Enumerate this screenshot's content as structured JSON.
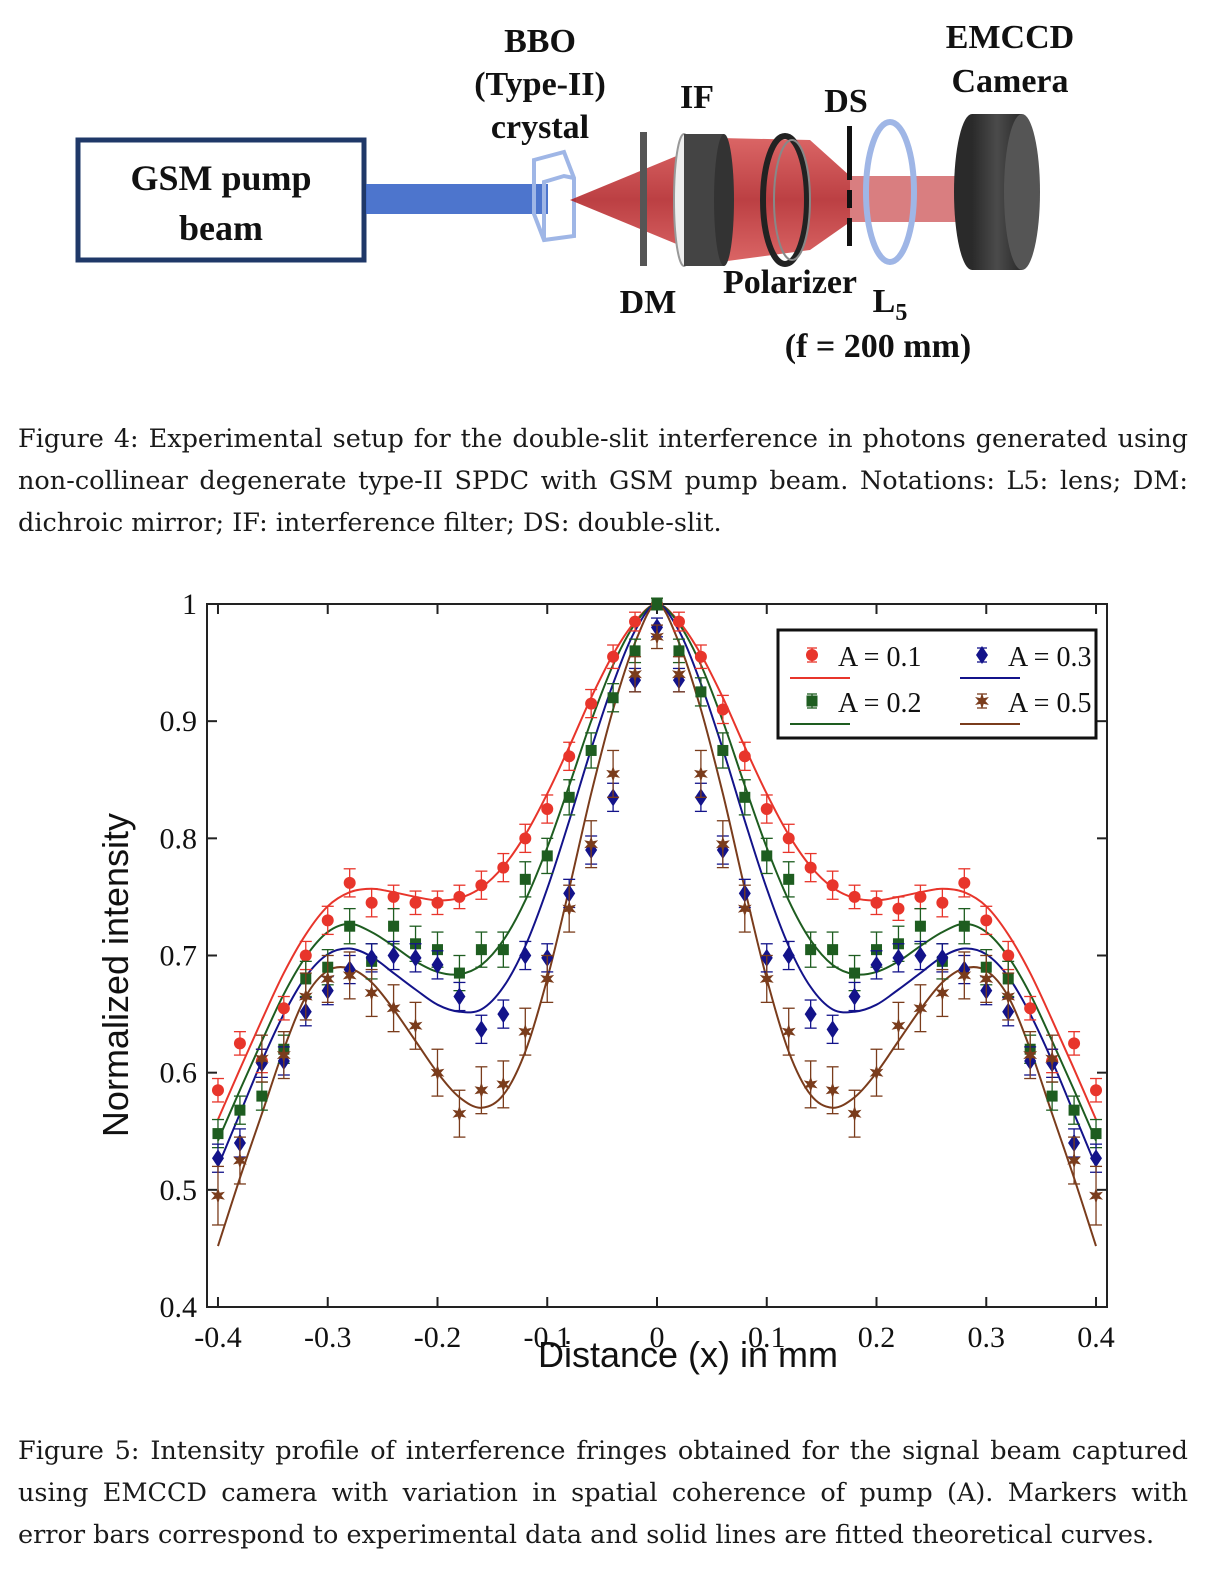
{
  "figure4": {
    "labels": {
      "pump_line1": "GSM pump",
      "pump_line2": "beam",
      "bbo_line1": "BBO",
      "bbo_line2": "(Type-II)",
      "bbo_line3": "crystal",
      "if": "IF",
      "ds": "DS",
      "emccd_line1": "EMCCD",
      "emccd_line2": "Camera",
      "dm": "DM",
      "polarizer": "Polarizer",
      "lens": "L",
      "lens_sub": "5",
      "focal": "(f = 200 mm)"
    },
    "colors": {
      "beam_blue": "#3a66c8",
      "spdc_red": "#c0282c",
      "frame": "#1f3868",
      "lens_blue": "#9fb6e6",
      "camera": "#3c3c3c"
    },
    "caption": "Figure 4: Experimental setup for the double-slit interference in photons generated using non-collinear degenerate type-II SPDC with GSM pump beam. Notations: L5: lens; DM: dichroic mirror; IF: interference filter; DS: double-slit."
  },
  "figure5": {
    "caption": "Figure 5: Intensity profile of interference fringes obtained for the signal beam captured using EMCCD camera with variation in spatial coherence of pump (A). Markers with error bars correspond to experimental data and solid lines are fitted theoretical curves."
  },
  "chart_data": {
    "type": "scatter",
    "xlabel": "Distance (x) in mm",
    "ylabel": "Normalized intensity",
    "xlim": [
      -0.41,
      0.41
    ],
    "ylim": [
      0.4,
      1.0
    ],
    "xticks": [
      "-0.4",
      "-0.3",
      "-0.2",
      "-0.1",
      "0",
      "0.1",
      "0.2",
      "0.3",
      "0.4"
    ],
    "yticks": [
      "0.4",
      "0.5",
      "0.6",
      "0.7",
      "0.8",
      "0.9",
      "1"
    ],
    "legend_position": "top-right",
    "grid": false,
    "x": [
      -0.4,
      -0.38,
      -0.36,
      -0.34,
      -0.32,
      -0.3,
      -0.28,
      -0.26,
      -0.24,
      -0.22,
      -0.2,
      -0.18,
      -0.16,
      -0.14,
      -0.12,
      -0.1,
      -0.08,
      -0.06,
      -0.04,
      -0.02,
      0,
      0.02,
      0.04,
      0.06,
      0.08,
      0.1,
      0.12,
      0.14,
      0.16,
      0.18,
      0.2,
      0.22,
      0.24,
      0.26,
      0.28,
      0.3,
      0.32,
      0.34,
      0.36,
      0.38,
      0.4
    ],
    "series": [
      {
        "name": "A = 0.1",
        "color": "#e8352b",
        "marker": "circle",
        "values": [
          0.585,
          0.625,
          0.61,
          0.655,
          0.7,
          0.73,
          0.762,
          0.745,
          0.75,
          0.745,
          0.745,
          0.75,
          0.76,
          0.775,
          0.8,
          0.825,
          0.87,
          0.915,
          0.955,
          0.985,
          1.0,
          0.985,
          0.955,
          0.91,
          0.87,
          0.825,
          0.8,
          0.775,
          0.76,
          0.75,
          0.745,
          0.74,
          0.75,
          0.745,
          0.762,
          0.73,
          0.7,
          0.655,
          0.61,
          0.625,
          0.585
        ],
        "errors": [
          0.01,
          0.01,
          0.01,
          0.01,
          0.012,
          0.012,
          0.012,
          0.012,
          0.01,
          0.01,
          0.01,
          0.01,
          0.012,
          0.012,
          0.012,
          0.012,
          0.012,
          0.012,
          0.01,
          0.008,
          0.005,
          0.008,
          0.01,
          0.012,
          0.012,
          0.012,
          0.012,
          0.012,
          0.012,
          0.01,
          0.01,
          0.01,
          0.01,
          0.012,
          0.012,
          0.012,
          0.012,
          0.01,
          0.01,
          0.01,
          0.01
        ],
        "fit": [
          0.56,
          0.603,
          0.645,
          0.685,
          0.718,
          0.742,
          0.754,
          0.757,
          0.754,
          0.75,
          0.747,
          0.749,
          0.758,
          0.776,
          0.803,
          0.838,
          0.878,
          0.92,
          0.957,
          0.985,
          1.0,
          0.985,
          0.957,
          0.92,
          0.878,
          0.838,
          0.803,
          0.776,
          0.758,
          0.749,
          0.747,
          0.75,
          0.754,
          0.757,
          0.754,
          0.742,
          0.718,
          0.685,
          0.645,
          0.603,
          0.56
        ]
      },
      {
        "name": "A = 0.2",
        "color": "#1e5d20",
        "marker": "square",
        "values": [
          0.548,
          0.568,
          0.58,
          0.62,
          0.68,
          0.69,
          0.725,
          0.695,
          0.725,
          0.71,
          0.705,
          0.685,
          0.705,
          0.705,
          0.765,
          0.785,
          0.835,
          0.875,
          0.92,
          0.96,
          1.0,
          0.96,
          0.925,
          0.875,
          0.835,
          0.785,
          0.765,
          0.705,
          0.705,
          0.685,
          0.705,
          0.71,
          0.725,
          0.695,
          0.725,
          0.69,
          0.68,
          0.62,
          0.58,
          0.568,
          0.548
        ],
        "errors": [
          0.012,
          0.012,
          0.012,
          0.012,
          0.015,
          0.015,
          0.015,
          0.015,
          0.015,
          0.015,
          0.015,
          0.015,
          0.015,
          0.015,
          0.015,
          0.015,
          0.015,
          0.015,
          0.012,
          0.01,
          0.005,
          0.01,
          0.012,
          0.015,
          0.015,
          0.015,
          0.015,
          0.015,
          0.015,
          0.015,
          0.015,
          0.015,
          0.015,
          0.015,
          0.015,
          0.015,
          0.015,
          0.012,
          0.012,
          0.012,
          0.012
        ],
        "fit": [
          0.542,
          0.585,
          0.627,
          0.667,
          0.699,
          0.72,
          0.727,
          0.72,
          0.708,
          0.695,
          0.686,
          0.684,
          0.692,
          0.713,
          0.747,
          0.792,
          0.845,
          0.9,
          0.948,
          0.983,
          1.0,
          0.983,
          0.948,
          0.9,
          0.845,
          0.792,
          0.747,
          0.713,
          0.692,
          0.684,
          0.686,
          0.695,
          0.708,
          0.72,
          0.727,
          0.72,
          0.699,
          0.667,
          0.627,
          0.585,
          0.542
        ]
      },
      {
        "name": "A = 0.3",
        "color": "#13138a",
        "marker": "diamond",
        "values": [
          0.527,
          0.54,
          0.608,
          0.61,
          0.652,
          0.67,
          0.688,
          0.698,
          0.7,
          0.698,
          0.692,
          0.665,
          0.637,
          0.65,
          0.7,
          0.698,
          0.753,
          0.79,
          0.835,
          0.935,
          0.98,
          0.935,
          0.835,
          0.79,
          0.753,
          0.698,
          0.7,
          0.65,
          0.637,
          0.665,
          0.692,
          0.698,
          0.7,
          0.698,
          0.688,
          0.67,
          0.652,
          0.61,
          0.608,
          0.54,
          0.527
        ],
        "errors": [
          0.012,
          0.012,
          0.012,
          0.012,
          0.012,
          0.012,
          0.012,
          0.012,
          0.012,
          0.012,
          0.012,
          0.012,
          0.012,
          0.012,
          0.012,
          0.012,
          0.012,
          0.012,
          0.012,
          0.01,
          0.008,
          0.01,
          0.012,
          0.012,
          0.012,
          0.012,
          0.012,
          0.012,
          0.012,
          0.012,
          0.012,
          0.012,
          0.012,
          0.012,
          0.012,
          0.012,
          0.012,
          0.012,
          0.012,
          0.012,
          0.012
        ],
        "fit": [
          0.52,
          0.565,
          0.61,
          0.65,
          0.682,
          0.701,
          0.706,
          0.699,
          0.685,
          0.671,
          0.658,
          0.652,
          0.654,
          0.673,
          0.708,
          0.757,
          0.815,
          0.876,
          0.932,
          0.977,
          1.0,
          0.977,
          0.932,
          0.876,
          0.815,
          0.757,
          0.708,
          0.673,
          0.654,
          0.652,
          0.658,
          0.671,
          0.685,
          0.699,
          0.706,
          0.701,
          0.682,
          0.65,
          0.61,
          0.565,
          0.52
        ]
      },
      {
        "name": "A = 0.5",
        "color": "#7a3c1c",
        "marker": "star",
        "values": [
          0.495,
          0.525,
          0.612,
          0.615,
          0.665,
          0.68,
          0.683,
          0.668,
          0.655,
          0.64,
          0.6,
          0.565,
          0.585,
          0.59,
          0.635,
          0.68,
          0.74,
          0.795,
          0.855,
          0.94,
          0.972,
          0.94,
          0.855,
          0.795,
          0.74,
          0.68,
          0.635,
          0.59,
          0.585,
          0.565,
          0.6,
          0.64,
          0.655,
          0.668,
          0.683,
          0.68,
          0.665,
          0.615,
          0.612,
          0.525,
          0.495
        ],
        "errors": [
          0.025,
          0.02,
          0.02,
          0.02,
          0.02,
          0.02,
          0.02,
          0.02,
          0.02,
          0.02,
          0.02,
          0.02,
          0.02,
          0.02,
          0.02,
          0.02,
          0.02,
          0.02,
          0.02,
          0.015,
          0.01,
          0.015,
          0.02,
          0.02,
          0.02,
          0.02,
          0.02,
          0.02,
          0.02,
          0.02,
          0.02,
          0.02,
          0.02,
          0.02,
          0.02,
          0.02,
          0.02,
          0.02,
          0.02,
          0.02,
          0.025
        ],
        "fit": [
          0.452,
          0.51,
          0.565,
          0.62,
          0.665,
          0.687,
          0.689,
          0.677,
          0.654,
          0.627,
          0.6,
          0.579,
          0.57,
          0.581,
          0.618,
          0.68,
          0.757,
          0.838,
          0.91,
          0.967,
          1.0,
          0.967,
          0.91,
          0.838,
          0.757,
          0.68,
          0.618,
          0.581,
          0.57,
          0.579,
          0.6,
          0.627,
          0.654,
          0.677,
          0.689,
          0.687,
          0.665,
          0.62,
          0.565,
          0.51,
          0.452
        ]
      }
    ]
  }
}
